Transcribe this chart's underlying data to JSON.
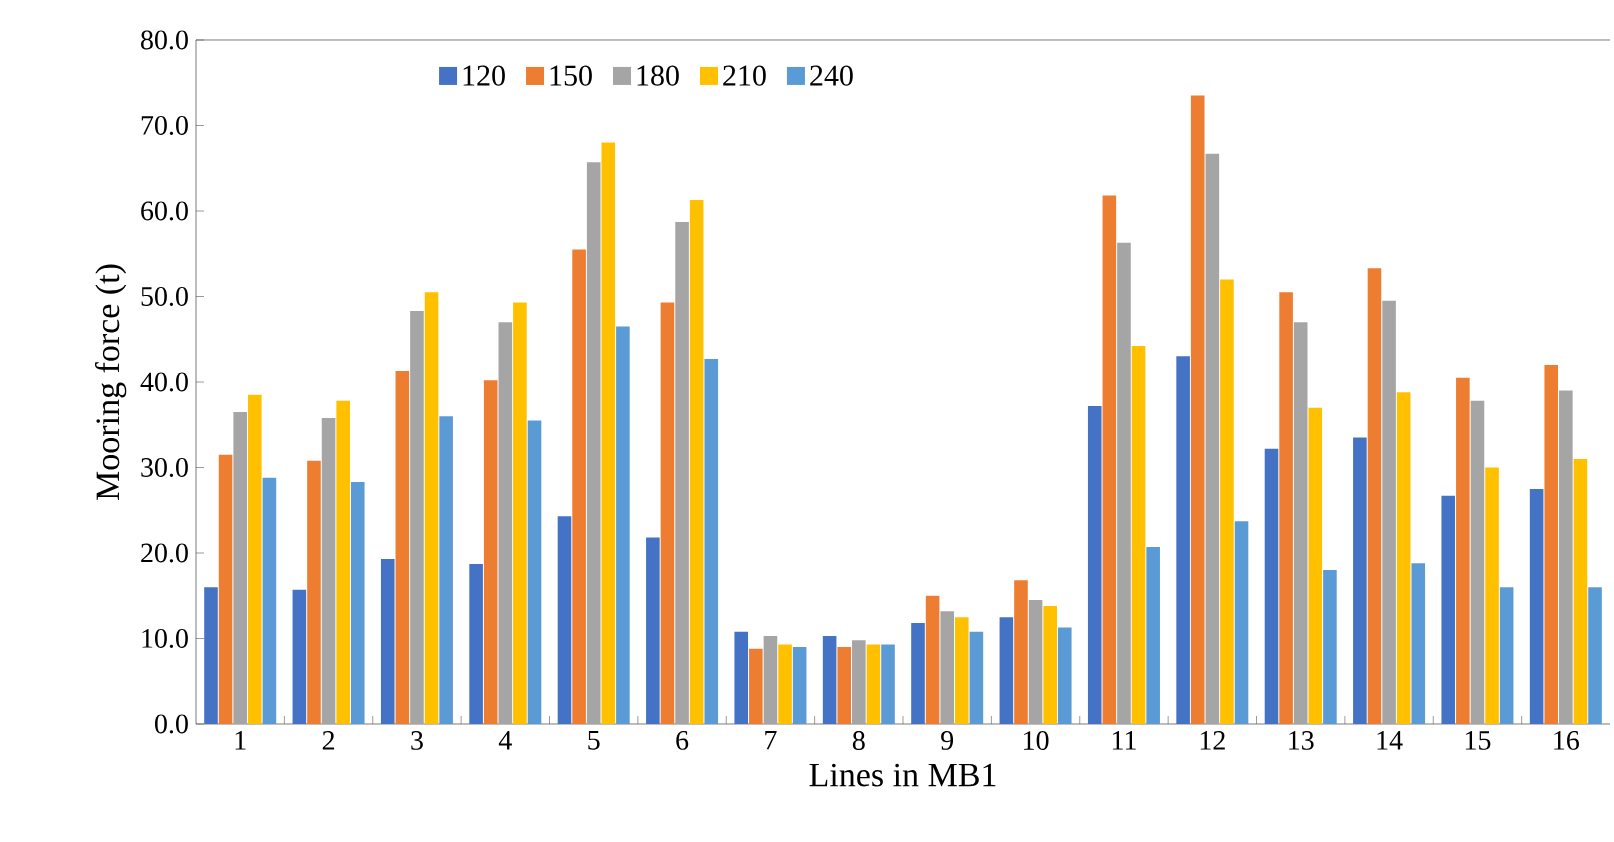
{
  "chart_data": {
    "type": "bar",
    "xlabel": "Lines in MB1",
    "ylabel": "Mooring force (t)",
    "categories": [
      "1",
      "2",
      "3",
      "4",
      "5",
      "6",
      "7",
      "8",
      "9",
      "10",
      "11",
      "12",
      "13",
      "14",
      "15",
      "16"
    ],
    "series": [
      {
        "name": "120",
        "color": "#4472c4",
        "values": [
          16.0,
          15.7,
          19.3,
          18.7,
          24.3,
          21.8,
          10.8,
          10.3,
          11.8,
          12.5,
          37.2,
          43.0,
          32.2,
          33.5,
          26.7,
          27.5
        ]
      },
      {
        "name": "150",
        "color": "#ed7d31",
        "values": [
          31.5,
          30.8,
          41.3,
          40.2,
          55.5,
          49.3,
          8.8,
          9.0,
          15.0,
          16.8,
          61.8,
          73.5,
          50.5,
          53.3,
          40.5,
          42.0
        ]
      },
      {
        "name": "180",
        "color": "#a5a5a5",
        "values": [
          36.5,
          35.8,
          48.3,
          47.0,
          65.7,
          58.7,
          10.3,
          9.8,
          13.2,
          14.5,
          56.3,
          66.7,
          47.0,
          49.5,
          37.8,
          39.0
        ]
      },
      {
        "name": "210",
        "color": "#ffc000",
        "values": [
          38.5,
          37.8,
          50.5,
          49.3,
          68.0,
          61.3,
          9.3,
          9.3,
          12.5,
          13.8,
          44.2,
          52.0,
          37.0,
          38.8,
          30.0,
          31.0
        ]
      },
      {
        "name": "240",
        "color": "#5b9bd5",
        "values": [
          28.8,
          28.3,
          36.0,
          35.5,
          46.5,
          42.7,
          9.0,
          9.3,
          10.8,
          11.3,
          20.7,
          23.7,
          18.0,
          18.8,
          16.0,
          16.0
        ]
      }
    ],
    "ylim": [
      0,
      80
    ],
    "yticks": [
      {
        "value": 0,
        "label": "0.0"
      },
      {
        "value": 10,
        "label": "10.0"
      },
      {
        "value": 20,
        "label": "20.0"
      },
      {
        "value": 30,
        "label": "30.0"
      },
      {
        "value": 40,
        "label": "40.0"
      },
      {
        "value": 50,
        "label": "50.0"
      },
      {
        "value": 60,
        "label": "60.0"
      },
      {
        "value": 70,
        "label": "70.0"
      },
      {
        "value": 80,
        "label": "80.0"
      }
    ],
    "legend": "top"
  }
}
